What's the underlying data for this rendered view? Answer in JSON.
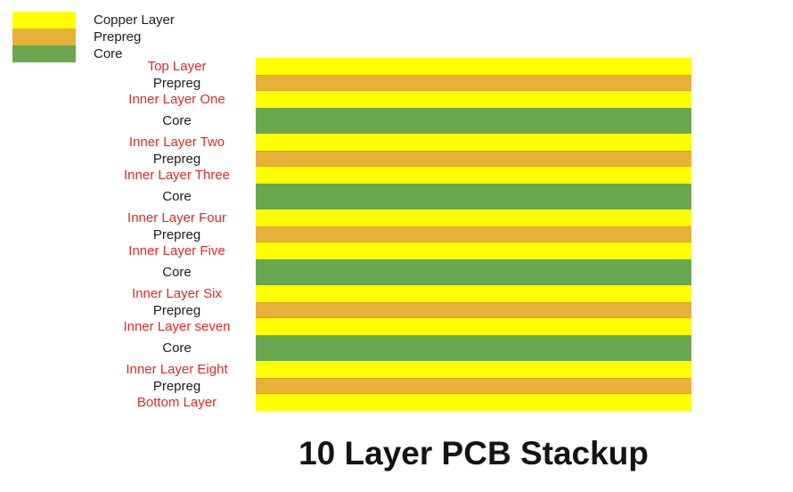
{
  "page": {
    "title": "10 Layer PCB Stackup",
    "background": "#ffffff"
  },
  "colors": {
    "copper": "#ffff00",
    "prepreg": "#e7b13c",
    "core": "#6aa84f",
    "prepreg_edge": "#dd9f27",
    "copper_label": "#de2a23",
    "material_label": "#1c1c1c",
    "title_color": "#141414"
  },
  "legend": {
    "items": [
      {
        "label": "Copper Layer",
        "type": "copper"
      },
      {
        "label": "Prepreg",
        "type": "prepreg"
      },
      {
        "label": "Core",
        "type": "core"
      }
    ]
  },
  "stackup": {
    "layers": [
      {
        "label": "Top Layer",
        "type": "copper"
      },
      {
        "label": "Prepreg",
        "type": "prepreg"
      },
      {
        "label": "Inner Layer One",
        "type": "copper"
      },
      {
        "label": "Core",
        "type": "core"
      },
      {
        "label": "Inner Layer Two",
        "type": "copper"
      },
      {
        "label": "Prepreg",
        "type": "prepreg"
      },
      {
        "label": "Inner Layer Three",
        "type": "copper"
      },
      {
        "label": "Core",
        "type": "core"
      },
      {
        "label": "Inner Layer Four",
        "type": "copper"
      },
      {
        "label": "Prepreg",
        "type": "prepreg"
      },
      {
        "label": "Inner Layer Five",
        "type": "copper"
      },
      {
        "label": "Core",
        "type": "core"
      },
      {
        "label": "Inner Layer Six",
        "type": "copper"
      },
      {
        "label": "Prepreg",
        "type": "prepreg"
      },
      {
        "label": "Inner Layer seven",
        "type": "copper"
      },
      {
        "label": "Core",
        "type": "core"
      },
      {
        "label": "Inner Layer Eight",
        "type": "copper"
      },
      {
        "label": "Prepreg",
        "type": "prepreg"
      },
      {
        "label": "Bottom Layer",
        "type": "copper"
      }
    ]
  }
}
